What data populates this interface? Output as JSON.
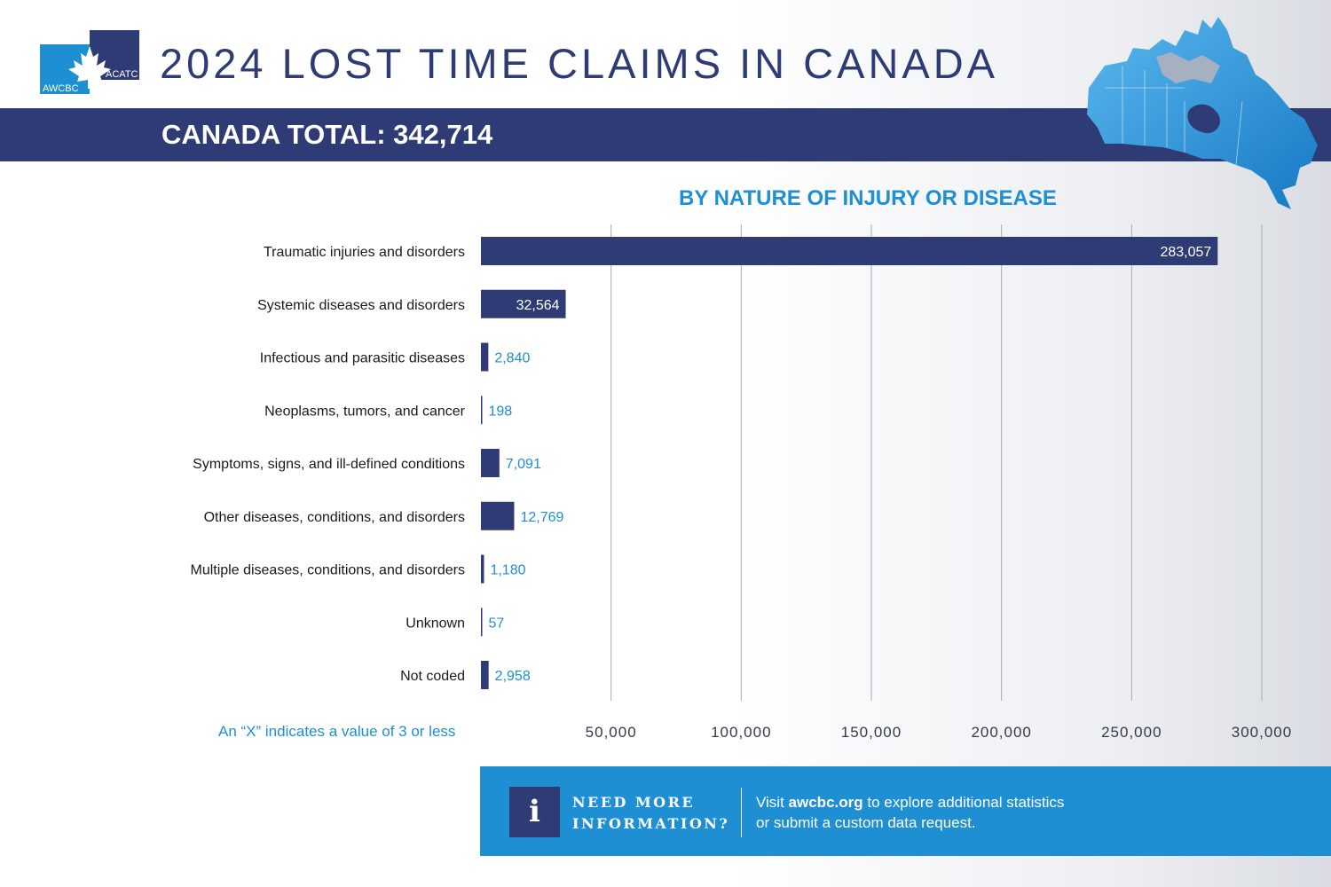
{
  "header": {
    "logo_text_left": "AWCBC",
    "logo_text_right": "ACATC",
    "title": "2024 LOST TIME CLAIMS IN CANADA",
    "total_label": "CANADA TOTAL: 342,714",
    "map_icon": "canada-map-icon"
  },
  "colors": {
    "navy": "#2e3b74",
    "blue": "#1f8fd3",
    "bar": "#2e3b74"
  },
  "chart_data": {
    "type": "bar",
    "orientation": "horizontal",
    "title": "BY NATURE OF INJURY OR DISEASE",
    "categories": [
      "Traumatic injuries and disorders",
      "Systemic diseases and disorders",
      "Infectious and parasitic diseases",
      "Neoplasms, tumors, and cancer",
      "Symptoms, signs, and ill-defined conditions",
      "Other diseases, conditions, and disorders",
      "Multiple diseases, conditions, and disorders",
      "Unknown",
      "Not coded"
    ],
    "values": [
      283057,
      32564,
      2840,
      198,
      7091,
      12769,
      1180,
      57,
      2958
    ],
    "value_labels": [
      "283,057",
      "32,564",
      "2,840",
      "198",
      "7,091",
      "12,769",
      "1,180",
      "57",
      "2,958"
    ],
    "xlim": [
      0,
      300000
    ],
    "ticks": [
      50000,
      100000,
      150000,
      200000,
      250000,
      300000
    ],
    "tick_labels": [
      "50,000",
      "100,000",
      "150,000",
      "200,000",
      "250,000",
      "300,000"
    ],
    "grid": true,
    "xlabel": "",
    "ylabel": ""
  },
  "footnote": "An “X” indicates a value of 3 or less",
  "info": {
    "icon": "info-icon",
    "icon_glyph": "i",
    "heading_line1": "NEED MORE",
    "heading_line2": "INFORMATION?",
    "text_prefix": "Visit ",
    "link": "awcbc.org",
    "text_suffix": " to explore additional statistics",
    "text_line2": "or submit a custom data request."
  }
}
